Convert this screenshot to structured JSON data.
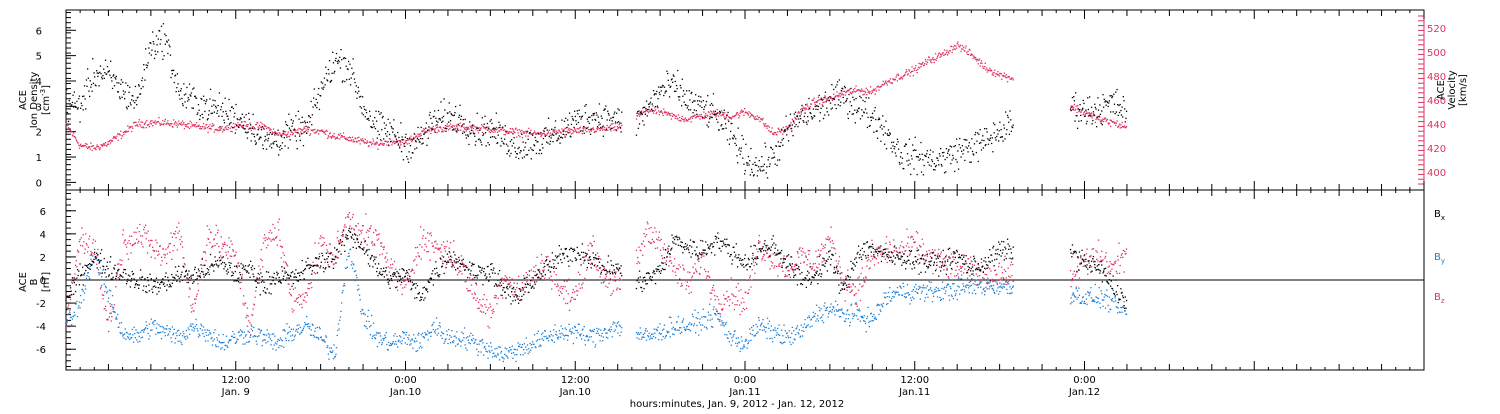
{
  "chart_data": {
    "type": "scatter",
    "x_axis": {
      "label": "hours:minutes, Jan.  9, 2012 - Jan. 12, 2012",
      "range_hours": [
        0,
        96
      ],
      "ticks": [
        {
          "hours": 12,
          "time": "12:00",
          "day": "Jan. 9"
        },
        {
          "hours": 24,
          "time": "0:00",
          "day": "Jan.10"
        },
        {
          "hours": 36,
          "time": "12:00",
          "day": "Jan.10"
        },
        {
          "hours": 48,
          "time": "0:00",
          "day": "Jan.11"
        },
        {
          "hours": 60,
          "time": "12:00",
          "day": "Jan.11"
        },
        {
          "hours": 72,
          "time": "0:00",
          "day": "Jan.12"
        }
      ],
      "data_end_hours": 75
    },
    "panels": [
      {
        "id": "top",
        "left_axis": {
          "label_lines": [
            "ACE",
            "Ion Density"
          ],
          "unit": "[cm",
          "unit_sup": "-3",
          "unit_end": "]",
          "range": [
            -0.3,
            6.8
          ],
          "ticks": [
            0,
            1,
            2,
            3,
            4,
            5,
            6
          ],
          "tick_labels": [
            "0",
            "1",
            "2",
            "3",
            "4",
            "5",
            "6"
          ]
        },
        "right_axis": {
          "label_lines": [
            "ACE",
            "Velocity",
            "[km/s]"
          ],
          "range": [
            385,
            535
          ],
          "ticks": [
            400,
            420,
            440,
            460,
            480,
            500,
            520
          ],
          "tick_labels": [
            "400",
            "420",
            "440",
            "460",
            "480",
            "500",
            "520"
          ],
          "color": "#e0315f"
        },
        "series": [
          {
            "key": "density",
            "axis": "left",
            "color": "#000000",
            "gaps": [
              [
                39.3,
                40.3
              ],
              [
                67.0,
                71.0
              ]
            ],
            "x": [
              0,
              1,
              2,
              3,
              4,
              5,
              6,
              7,
              8,
              9,
              10,
              11,
              12,
              13,
              14,
              15,
              16,
              17,
              18,
              19,
              20,
              21,
              22,
              23,
              24,
              25,
              26,
              27,
              28,
              29,
              30,
              31,
              32,
              33,
              34,
              35,
              36,
              37,
              38,
              39,
              40,
              41,
              42,
              43,
              44,
              45,
              46,
              47,
              48,
              49,
              50,
              51,
              52,
              53,
              54,
              55,
              56,
              57,
              58,
              59,
              60,
              61,
              62,
              63,
              64,
              65,
              66,
              67,
              71,
              72,
              73,
              74,
              75
            ],
            "y": [
              3.1,
              3.0,
              4.3,
              4.2,
              3.6,
              3.2,
              5.4,
              5.7,
              3.5,
              3.2,
              3.0,
              2.8,
              2.6,
              2.3,
              1.6,
              1.7,
              2.0,
              2.1,
              3.6,
              4.8,
              4.6,
              3.0,
              2.1,
              2.0,
              1.5,
              1.6,
              2.4,
              2.6,
              2.5,
              2.0,
              2.1,
              1.7,
              1.4,
              1.6,
              1.7,
              2.0,
              2.4,
              2.6,
              2.6,
              2.4,
              2.2,
              2.8,
              3.6,
              3.8,
              3.2,
              2.9,
              2.6,
              1.9,
              1.0,
              0.6,
              1.0,
              2.0,
              2.6,
              2.8,
              3.2,
              3.4,
              3.0,
              2.6,
              2.0,
              1.1,
              1.0,
              0.9,
              0.9,
              1.2,
              1.4,
              1.6,
              2.0,
              2.3,
              3.0,
              2.8,
              2.9,
              3.1,
              2.8
            ]
          },
          {
            "key": "velocity",
            "axis": "right",
            "color": "#e0315f",
            "gaps": [
              [
                39.3,
                40.3
              ],
              [
                67.0,
                71.0
              ]
            ],
            "x": [
              0,
              1,
              2,
              3,
              4,
              5,
              6,
              7,
              8,
              9,
              10,
              11,
              12,
              13,
              14,
              15,
              16,
              17,
              18,
              19,
              20,
              21,
              22,
              23,
              24,
              25,
              26,
              27,
              28,
              29,
              30,
              31,
              32,
              33,
              34,
              35,
              36,
              37,
              38,
              39,
              40,
              41,
              42,
              43,
              44,
              45,
              46,
              47,
              48,
              49,
              50,
              51,
              52,
              53,
              54,
              55,
              56,
              57,
              58,
              59,
              60,
              61,
              62,
              63,
              64,
              65,
              66,
              67,
              71,
              72,
              73,
              74,
              75
            ],
            "y": [
              440,
              422,
              420,
              424,
              432,
              440,
              441,
              441,
              440,
              438,
              437,
              436,
              439,
              438,
              438,
              431,
              433,
              435,
              434,
              430,
              428,
              425,
              423,
              426,
              424,
              432,
              436,
              437,
              437,
              436,
              436,
              434,
              433,
              432,
              432,
              434,
              434,
              435,
              436,
              437,
              442,
              452,
              450,
              446,
              444,
              447,
              449,
              446,
              450,
              445,
              432,
              436,
              451,
              459,
              461,
              466,
              468,
              467,
              475,
              480,
              485,
              493,
              498,
              506,
              498,
              487,
              481,
              478,
              455,
              450,
              444,
              441,
              437
            ]
          }
        ]
      },
      {
        "id": "bottom",
        "left_axis": {
          "label_lines": [
            "ACE",
            "B"
          ],
          "unit": "[nT]",
          "range": [
            -7.8,
            7.8
          ],
          "ticks": [
            -6,
            -4,
            -2,
            0,
            2,
            4,
            6
          ],
          "tick_labels": [
            "-6",
            "-4",
            "-2",
            "0",
            "2",
            "4",
            "6"
          ]
        },
        "zero_line": true,
        "legend": {
          "position": "right",
          "entries": [
            {
              "base": "B",
              "sub": "x",
              "color": "#000000"
            },
            {
              "base": "B",
              "sub": "y",
              "color": "#1a7fd6"
            },
            {
              "base": "B",
              "sub": "z",
              "color": "#e0315f"
            }
          ]
        },
        "series": [
          {
            "key": "bx",
            "color": "#000000",
            "gaps": [
              [
                39.3,
                40.3
              ],
              [
                67.0,
                71.0
              ]
            ],
            "x": [
              0,
              1,
              2,
              3,
              4,
              5,
              6,
              7,
              8,
              9,
              10,
              11,
              12,
              13,
              14,
              15,
              16,
              17,
              18,
              19,
              20,
              21,
              22,
              23,
              24,
              25,
              26,
              27,
              28,
              29,
              30,
              31,
              32,
              33,
              34,
              35,
              36,
              37,
              38,
              39,
              40,
              41,
              42,
              43,
              44,
              45,
              46,
              47,
              48,
              49,
              50,
              51,
              52,
              53,
              54,
              55,
              56,
              57,
              58,
              59,
              60,
              61,
              62,
              63,
              64,
              65,
              66,
              67,
              71,
              72,
              73,
              74,
              75
            ],
            "y": [
              -2.0,
              0.5,
              2.0,
              1.0,
              0.5,
              0.0,
              -0.5,
              -0.3,
              0.5,
              0.3,
              1.0,
              1.5,
              0.5,
              1.0,
              -0.5,
              0.5,
              0.0,
              1.0,
              1.5,
              2.0,
              4.0,
              3.0,
              1.0,
              0.0,
              0.5,
              -1.5,
              0.5,
              2.0,
              1.5,
              0.5,
              1.0,
              -1.0,
              -1.5,
              0.0,
              1.0,
              2.0,
              2.5,
              2.0,
              1.0,
              1.0,
              -0.3,
              0.0,
              0.8,
              3.5,
              2.8,
              2.5,
              3.5,
              2.5,
              1.5,
              2.5,
              3.0,
              1.5,
              0.0,
              0.5,
              2.0,
              -1.0,
              2.5,
              2.8,
              2.0,
              2.0,
              1.8,
              1.5,
              1.5,
              2.0,
              1.0,
              1.5,
              2.5,
              2.5,
              2.5,
              1.5,
              1.0,
              -0.5,
              -2.0
            ]
          },
          {
            "key": "by",
            "color": "#1a7fd6",
            "gaps": [
              [
                39.3,
                40.3
              ],
              [
                67.0,
                71.0
              ]
            ],
            "x": [
              0,
              1,
              2,
              3,
              4,
              5,
              6,
              7,
              8,
              9,
              10,
              11,
              12,
              13,
              14,
              15,
              16,
              17,
              18,
              19,
              20,
              21,
              22,
              23,
              24,
              25,
              26,
              27,
              28,
              29,
              30,
              31,
              32,
              33,
              34,
              35,
              36,
              37,
              38,
              39,
              40,
              41,
              42,
              43,
              44,
              45,
              46,
              47,
              48,
              49,
              50,
              51,
              52,
              53,
              54,
              55,
              56,
              57,
              58,
              59,
              60,
              61,
              62,
              63,
              64,
              65,
              66,
              67,
              71,
              72,
              73,
              74,
              75
            ],
            "y": [
              -4.0,
              -2.0,
              2.5,
              -1.5,
              -4.5,
              -5.0,
              -4.0,
              -4.5,
              -5.0,
              -4.0,
              -4.5,
              -5.5,
              -5.0,
              -4.5,
              -5.0,
              -5.5,
              -4.5,
              -4.0,
              -5.0,
              -6.5,
              3.0,
              -3.0,
              -5.0,
              -5.5,
              -5.0,
              -5.5,
              -4.0,
              -5.0,
              -5.0,
              -5.5,
              -6.0,
              -6.5,
              -6.0,
              -5.5,
              -5.0,
              -4.5,
              -4.5,
              -5.0,
              -4.5,
              -4.0,
              -4.5,
              -5.0,
              -4.5,
              -4.0,
              -4.0,
              -3.5,
              -3.0,
              -5.0,
              -5.5,
              -4.0,
              -4.5,
              -5.0,
              -4.5,
              -3.0,
              -2.5,
              -3.0,
              -3.0,
              -3.5,
              -1.5,
              -1.0,
              -1.0,
              -1.0,
              -1.0,
              -0.8,
              -0.5,
              -0.5,
              -0.5,
              -0.8,
              -1.2,
              -1.5,
              -1.5,
              -2.0,
              -3.0
            ]
          },
          {
            "key": "bz",
            "color": "#e0315f",
            "gaps": [
              [
                39.3,
                40.3
              ],
              [
                67.0,
                71.0
              ]
            ],
            "x": [
              0,
              1,
              2,
              3,
              4,
              5,
              6,
              7,
              8,
              9,
              10,
              11,
              12,
              13,
              14,
              15,
              16,
              17,
              18,
              19,
              20,
              21,
              22,
              23,
              24,
              25,
              26,
              27,
              28,
              29,
              30,
              31,
              32,
              33,
              34,
              35,
              36,
              37,
              38,
              39,
              40,
              41,
              42,
              43,
              44,
              45,
              46,
              47,
              48,
              49,
              50,
              51,
              52,
              53,
              54,
              55,
              56,
              57,
              58,
              59,
              60,
              61,
              62,
              63,
              64,
              65,
              66,
              67,
              71,
              72,
              73,
              74,
              75
            ],
            "y": [
              -4.0,
              3.5,
              3.0,
              -4.0,
              3.0,
              4.0,
              3.0,
              2.0,
              4.5,
              -3.0,
              4.0,
              3.0,
              2.0,
              -4.0,
              3.0,
              4.5,
              -2.0,
              -1.0,
              3.0,
              2.0,
              5.5,
              4.0,
              3.5,
              1.0,
              -1.0,
              3.5,
              3.0,
              2.5,
              1.0,
              -1.5,
              -3.0,
              0.5,
              -1.0,
              0.5,
              1.5,
              -1.0,
              -1.5,
              3.0,
              0.5,
              -0.5,
              0.0,
              4.0,
              3.5,
              1.0,
              -0.5,
              2.0,
              -2.0,
              -1.0,
              -2.0,
              3.0,
              2.0,
              1.0,
              2.0,
              1.5,
              3.5,
              0.0,
              -1.0,
              2.0,
              2.5,
              2.5,
              3.0,
              2.0,
              1.5,
              1.0,
              1.0,
              0.5,
              0.5,
              0.5,
              0.0,
              1.5,
              2.0,
              1.0,
              2.5
            ]
          }
        ]
      }
    ]
  }
}
